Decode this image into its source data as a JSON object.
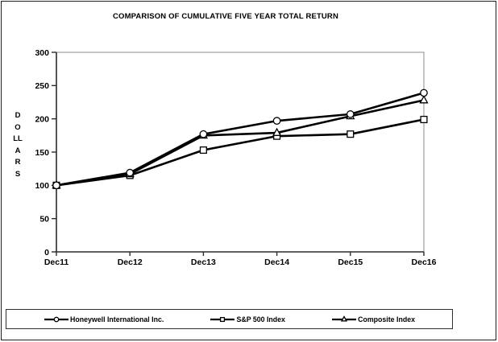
{
  "page": {
    "background": "#ffffff",
    "frame_border_color": "#1f1f1f"
  },
  "chart_data": {
    "type": "line",
    "title": "COMPARISON OF CUMULATIVE FIVE YEAR TOTAL RETURN",
    "xlabel": "",
    "ylabel": "DOLLARS",
    "categories": [
      "Dec11",
      "Dec12",
      "Dec13",
      "Dec14",
      "Dec15",
      "Dec16"
    ],
    "yticks": [
      300,
      250,
      200,
      150,
      100,
      50,
      0
    ],
    "ylim": [
      0,
      300
    ],
    "grid": false,
    "legend_position": "bottom",
    "line_color": "#000000",
    "marker_fill": "#ffffff",
    "plot_border_color": "#8c8c8c",
    "series": [
      {
        "name": "Honeywell International Inc.",
        "marker": "circle",
        "values": [
          100,
          119,
          177,
          197,
          207,
          239
        ]
      },
      {
        "name": "S&P 500 Index",
        "marker": "square",
        "values": [
          100,
          115,
          153,
          174,
          177,
          199
        ]
      },
      {
        "name": "Composite Index",
        "marker": "triangle",
        "values": [
          100,
          117,
          175,
          179,
          204,
          228
        ]
      }
    ]
  }
}
